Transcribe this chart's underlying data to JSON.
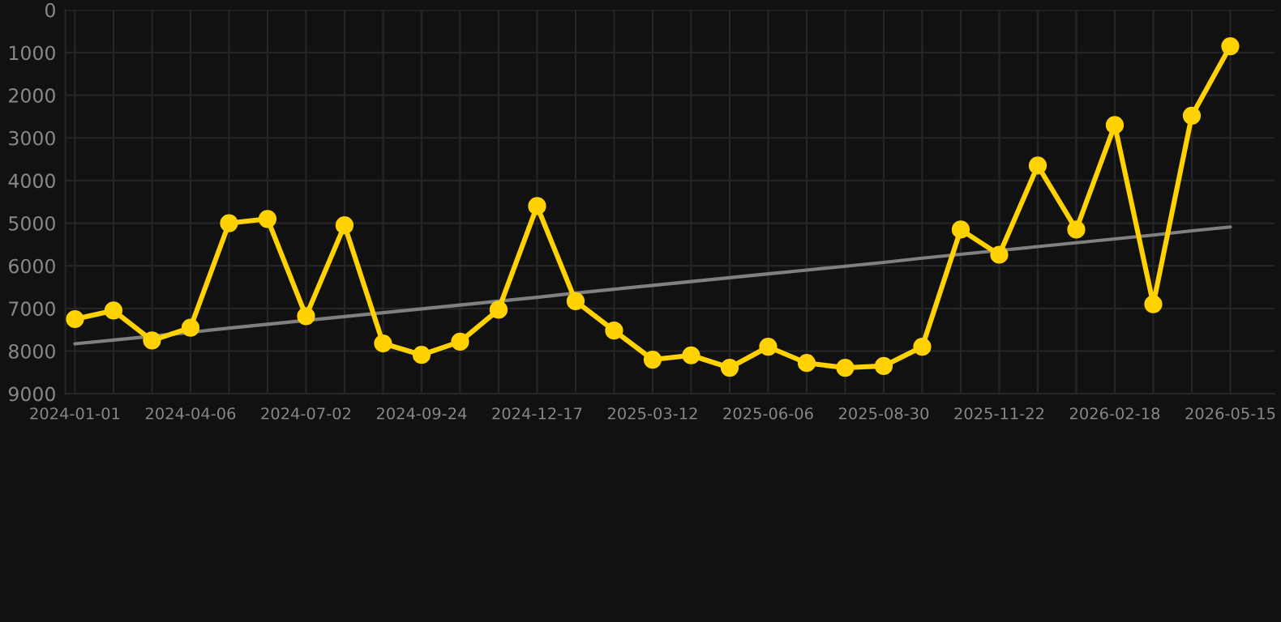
{
  "chart_data": {
    "type": "line",
    "categories": [
      "2024-01-01",
      null,
      null,
      "2024-04-06",
      null,
      null,
      "2024-07-02",
      null,
      null,
      "2024-09-24",
      null,
      null,
      "2024-12-17",
      null,
      null,
      "2025-03-12",
      null,
      null,
      "2025-06-06",
      null,
      null,
      "2025-08-30",
      null,
      null,
      "2025-11-22",
      null,
      null,
      "2026-02-18",
      null,
      null,
      "2026-05-15"
    ],
    "series": [
      {
        "color": "#ffd200",
        "marker": "circle",
        "values": [
          7250,
          7050,
          7750,
          7450,
          5000,
          4900,
          7180,
          5050,
          7820,
          8090,
          7780,
          7030,
          4600,
          6830,
          7520,
          8200,
          8100,
          8390,
          7900,
          8280,
          8390,
          8350,
          7900,
          5150,
          5740,
          3650,
          5150,
          2700,
          6900,
          2480,
          850
        ]
      },
      {
        "type": "line",
        "color": "#808080",
        "marker": "none",
        "values": [
          7830,
          7740,
          7650,
          7560,
          7460,
          7370,
          7280,
          7190,
          7100,
          7010,
          6920,
          6830,
          6740,
          6640,
          6550,
          6460,
          6370,
          6280,
          6190,
          6100,
          6010,
          5920,
          5820,
          5730,
          5640,
          5550,
          5460,
          5370,
          5280,
          5180,
          5090
        ]
      }
    ],
    "ylim": [
      9000,
      0
    ],
    "yticks": [
      0,
      1000,
      2000,
      3000,
      4000,
      5000,
      6000,
      7000,
      8000,
      9000
    ],
    "grid": true,
    "line_style": "solid"
  }
}
